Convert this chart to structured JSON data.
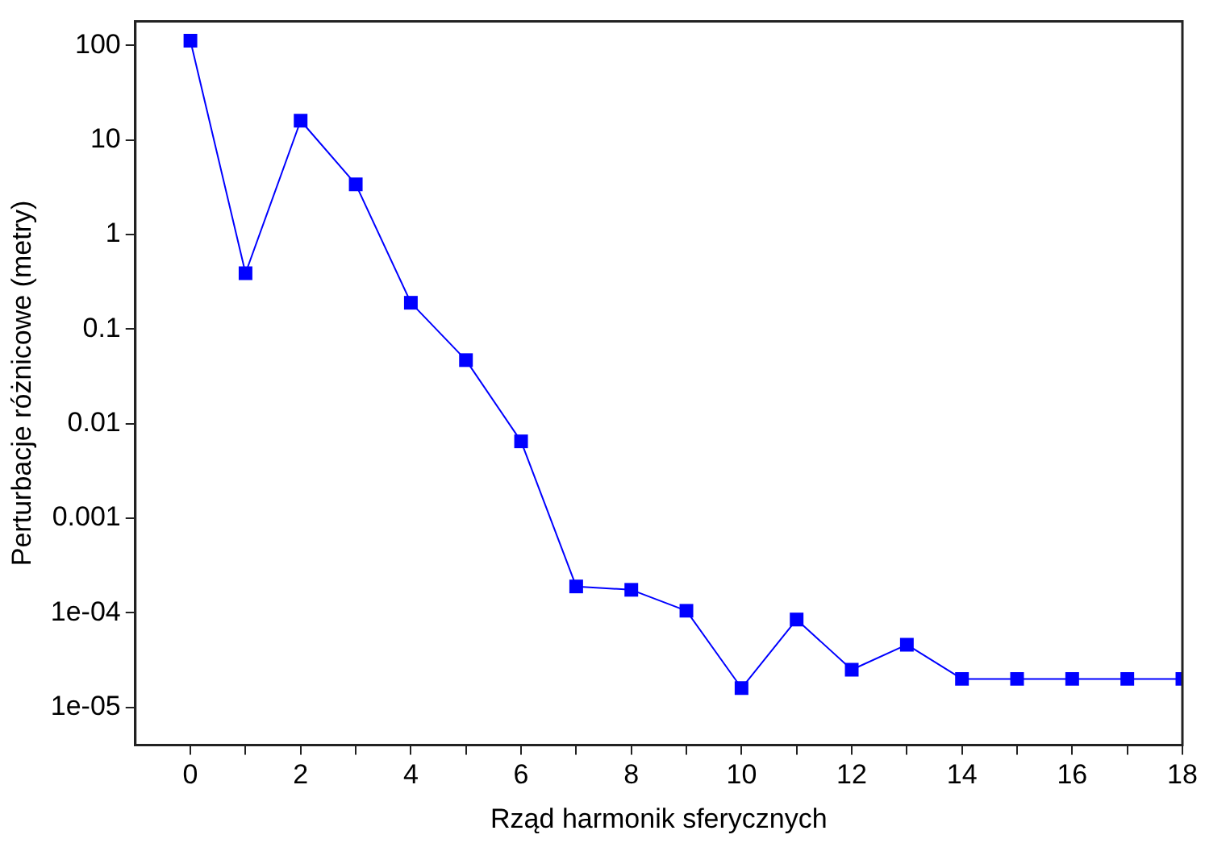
{
  "chart_data": {
    "type": "line",
    "xlabel": "Rząd harmonik sferycznych",
    "ylabel": "Perturbacje różnicowe (metry)",
    "x": [
      0,
      1,
      2,
      3,
      4,
      5,
      6,
      7,
      8,
      9,
      10,
      11,
      12,
      13,
      14,
      15,
      16,
      17,
      18
    ],
    "series": [
      {
        "color": "#0000ff",
        "values": [
          112,
          0.39,
          16,
          3.4,
          0.19,
          0.047,
          0.0065,
          0.00019,
          0.000175,
          0.000105,
          1.6e-05,
          8.5e-05,
          2.5e-05,
          4.6e-05,
          2e-05,
          2e-05,
          2e-05,
          2e-05,
          2e-05
        ]
      }
    ],
    "log": "y",
    "ylim": [
      4e-06,
      180
    ],
    "yticks": [
      100,
      10,
      1,
      0.1,
      0.01,
      0.001,
      {
        "value": 0.0001,
        "label": "1e-04"
      },
      {
        "value": 1e-05,
        "label": "1e-05"
      }
    ],
    "xlim": [
      -1,
      18
    ],
    "xticks": [
      0,
      {
        "value": 1,
        "label": null
      },
      2,
      {
        "value": 3,
        "label": null
      },
      4,
      {
        "value": 5,
        "label": null
      },
      6,
      {
        "value": 7,
        "label": null
      },
      8,
      {
        "value": 9,
        "label": null
      },
      10,
      {
        "value": 11,
        "label": null
      },
      12,
      {
        "value": 13,
        "label": null
      },
      14,
      {
        "value": 15,
        "label": null
      },
      16,
      {
        "value": 17,
        "label": null
      },
      18
    ],
    "marker": "square",
    "line_style": "solid",
    "grid": false,
    "legend": false
  }
}
